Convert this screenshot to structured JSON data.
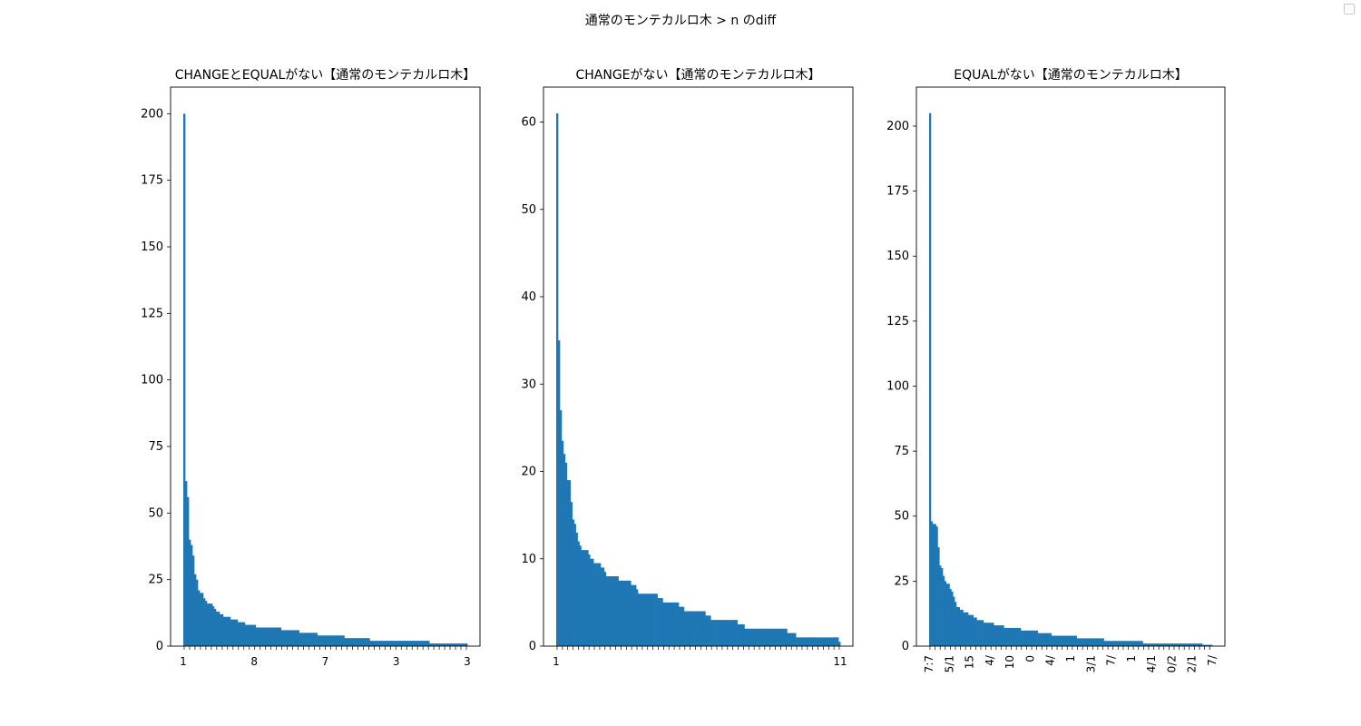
{
  "figure": {
    "suptitle": "通常のモンテカルロ木 > n のdiff"
  },
  "chart_data": [
    {
      "type": "bar",
      "title": "CHANGEとEQUALがない【通常のモンテカルロ木】",
      "xlabel": "",
      "ylabel": "",
      "ylim": [
        0,
        210
      ],
      "yticks": [
        0,
        25,
        50,
        75,
        100,
        125,
        150,
        175,
        200
      ],
      "values": [
        200,
        62,
        56,
        40,
        38,
        34,
        27,
        25,
        21,
        20,
        20,
        18,
        17,
        16,
        16,
        16,
        15,
        14,
        13,
        13,
        12,
        12,
        11,
        11,
        11,
        11,
        10,
        10,
        10,
        10,
        9,
        9,
        9,
        9,
        8,
        8,
        8,
        8,
        8,
        8,
        7,
        7,
        7,
        7,
        7,
        7,
        7,
        7,
        7,
        7,
        7,
        7,
        7,
        7,
        6,
        6,
        6,
        6,
        6,
        6,
        6,
        6,
        6,
        6,
        5,
        5,
        5,
        5,
        5,
        5,
        5,
        5,
        5,
        5,
        4,
        4,
        4,
        4,
        4,
        4,
        4,
        4,
        4,
        4,
        4,
        4,
        4,
        4,
        4,
        3,
        3,
        3,
        3,
        3,
        3,
        3,
        3,
        3,
        3,
        3,
        3,
        3,
        3,
        2,
        2,
        2,
        2,
        2,
        2,
        2,
        2,
        2,
        2,
        2,
        2,
        2,
        2,
        2,
        2,
        2,
        2,
        2,
        2,
        2,
        2,
        2,
        2,
        2,
        2,
        2,
        2,
        2,
        2,
        2,
        2,
        2,
        1,
        1,
        1,
        1,
        1,
        1,
        1,
        1,
        1,
        1,
        1,
        1,
        1,
        1,
        1,
        1,
        1,
        1,
        1,
        1,
        1
      ],
      "tick_labels_visible": [
        "1",
        "8",
        "7",
        "3",
        "3"
      ]
    },
    {
      "type": "bar",
      "title": "CHANGEがない【通常のモンテカルロ木】",
      "xlabel": "",
      "ylabel": "",
      "ylim": [
        0,
        64
      ],
      "yticks": [
        0,
        10,
        20,
        30,
        40,
        50,
        60
      ],
      "values": [
        61,
        35,
        27,
        23.5,
        22,
        21,
        19,
        19,
        16.5,
        14.5,
        14,
        13,
        12,
        11.5,
        11,
        11,
        11,
        11,
        10.5,
        10,
        10,
        9.5,
        9.5,
        9.5,
        9.5,
        9,
        9,
        8.5,
        8,
        8,
        8,
        8,
        8,
        8,
        8,
        7.5,
        7.5,
        7.5,
        7.5,
        7.5,
        7.5,
        7.5,
        7,
        7,
        7,
        6.5,
        6,
        6,
        6,
        6,
        6,
        6,
        6,
        6,
        6,
        6,
        6,
        5.5,
        5.5,
        5.5,
        5,
        5,
        5,
        5,
        5,
        5,
        5,
        5,
        5,
        4.5,
        4.5,
        4.5,
        4,
        4,
        4,
        4,
        4,
        4,
        4,
        4,
        4,
        4,
        4,
        4,
        3.5,
        3.5,
        3.5,
        3,
        3,
        3,
        3,
        3,
        3,
        3,
        3,
        3,
        3,
        3,
        3,
        3,
        3,
        3,
        2.5,
        2.5,
        2.5,
        2.5,
        2,
        2,
        2,
        2,
        2,
        2,
        2,
        2,
        2,
        2,
        2,
        2,
        2,
        2,
        2,
        2,
        2,
        2,
        2,
        2,
        2,
        2,
        2,
        2,
        1.5,
        1.5,
        1.5,
        1.5,
        1.5,
        1,
        1,
        1,
        1,
        1,
        1,
        1,
        1,
        1,
        1,
        1,
        1,
        1,
        1,
        1,
        1,
        1,
        1,
        1,
        1,
        1,
        1,
        1,
        1,
        0.5
      ],
      "tick_labels_visible": [
        "1",
        "11"
      ]
    },
    {
      "type": "bar",
      "title": "EQUALがない【通常のモンテカルロ木】",
      "xlabel": "",
      "ylabel": "",
      "ylim": [
        0,
        215
      ],
      "yticks": [
        0,
        25,
        50,
        75,
        100,
        125,
        150,
        175,
        200
      ],
      "values": [
        205,
        48,
        47,
        47,
        46,
        38,
        31,
        30,
        27,
        25,
        24,
        24,
        22,
        21,
        19,
        17,
        15,
        15,
        14,
        14,
        13,
        13,
        13,
        12,
        12,
        12,
        11,
        11,
        10,
        10,
        10,
        10,
        9,
        9,
        9,
        9,
        9,
        9,
        8,
        8,
        8,
        8,
        8,
        8,
        7,
        7,
        7,
        7,
        7,
        7,
        7,
        7,
        7,
        7,
        6,
        6,
        6,
        6,
        6,
        6,
        6,
        6,
        6,
        6,
        5,
        5,
        5,
        5,
        5,
        5,
        5,
        5,
        4,
        4,
        4,
        4,
        4,
        4,
        4,
        4,
        4,
        4,
        4,
        4,
        4,
        4,
        4,
        3,
        3,
        3,
        3,
        3,
        3,
        3,
        3,
        3,
        3,
        3,
        3,
        3,
        3,
        3,
        3,
        2,
        2,
        2,
        2,
        2,
        2,
        2,
        2,
        2,
        2,
        2,
        2,
        2,
        2,
        2,
        2,
        2,
        2,
        2,
        2,
        2,
        2,
        2,
        1,
        1,
        1,
        1,
        1,
        1,
        1,
        1,
        1,
        1,
        1,
        1,
        1,
        1,
        1,
        1,
        1,
        1,
        1,
        1,
        1,
        1,
        1,
        1,
        1,
        1,
        1,
        1,
        1,
        1,
        1,
        1,
        1,
        1,
        1,
        0.5,
        0.5,
        0.5,
        0.5,
        0.5,
        0.5
      ],
      "tick_labels_visible": [
        "7:7",
        "5/1",
        "15",
        "4/",
        "10",
        "0",
        "4/",
        "1",
        "3/1",
        "7/",
        "1",
        "4/1",
        "0/2",
        "2/1",
        "7/"
      ]
    }
  ],
  "colors": {
    "bar": "#1f77b4",
    "axis": "#000000"
  },
  "icons": {
    "legend_box": "empty-legend-icon"
  }
}
